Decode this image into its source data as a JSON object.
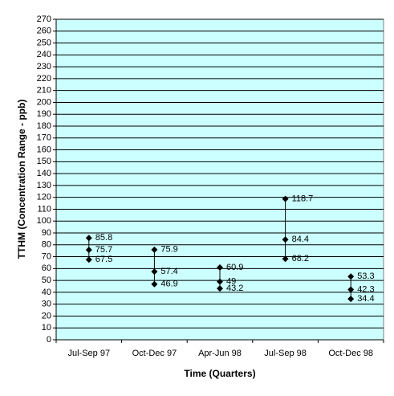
{
  "chart_data": {
    "type": "hilo",
    "xlabel": "Time (Quarters)",
    "ylabel": "TTHM (Concentration Range - ppb)",
    "categories": [
      "Jul-Sep 97",
      "Oct-Dec 97",
      "Apr-Jun 98",
      "Jul-Sep 98",
      "Oct-Dec 98"
    ],
    "series": [
      {
        "color": "#000000",
        "values": [
          85.8,
          75.9,
          60.9,
          118.7,
          53.3
        ]
      },
      {
        "color": "#000000",
        "values": [
          75.7,
          57.4,
          49,
          84.4,
          42.3
        ]
      },
      {
        "color": "#000000",
        "values": [
          67.5,
          46.9,
          43.2,
          68.2,
          34.4
        ]
      }
    ],
    "ylim": [
      0,
      270
    ],
    "yticks": [
      0,
      10,
      20,
      30,
      40,
      50,
      60,
      70,
      80,
      90,
      100,
      110,
      120,
      130,
      140,
      150,
      160,
      170,
      180,
      190,
      200,
      210,
      220,
      230,
      240,
      250,
      260,
      270
    ],
    "grid": true,
    "plot_background": "#ccffff"
  }
}
